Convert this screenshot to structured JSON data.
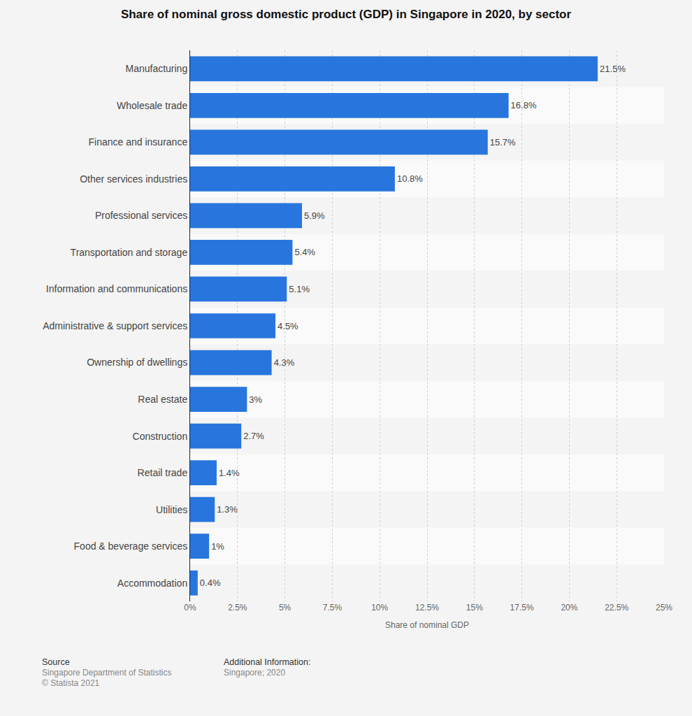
{
  "chart_data": {
    "type": "bar",
    "orientation": "horizontal",
    "title": "Share of nominal gross domestic product (GDP) in Singapore in 2020, by sector",
    "x_label": "Share of nominal GDP",
    "categories": [
      "Manufacturing",
      "Wholesale trade",
      "Finance and insurance",
      "Other services industries",
      "Professional services",
      "Transportation and storage",
      "Information and communications",
      "Administrative & support services",
      "Ownership of dwellings",
      "Real estate",
      "Construction",
      "Retail trade",
      "Utilities",
      "Food & beverage services",
      "Accommodation"
    ],
    "values": [
      21.5,
      16.8,
      15.7,
      10.8,
      5.9,
      5.4,
      5.1,
      4.5,
      4.3,
      3,
      2.7,
      1.4,
      1.3,
      1,
      0.4
    ],
    "value_labels": [
      "21.5%",
      "16.8%",
      "15.7%",
      "10.8%",
      "5.9%",
      "5.4%",
      "5.1%",
      "4.5%",
      "4.3%",
      "3%",
      "2.7%",
      "1.4%",
      "1.3%",
      "1%",
      "0.4%"
    ],
    "data_labels": true,
    "color": "#2876dd",
    "xlim": [
      0,
      25
    ],
    "xticks": [
      {
        "value": 0,
        "label": "0%"
      },
      {
        "value": 2.5,
        "label": "2.5%"
      },
      {
        "value": 5,
        "label": "5%"
      },
      {
        "value": 7.5,
        "label": "7.5%"
      },
      {
        "value": 10,
        "label": "10%"
      },
      {
        "value": 12.5,
        "label": "12.5%"
      },
      {
        "value": 15,
        "label": "15%"
      },
      {
        "value": 17.5,
        "label": "17.5%"
      },
      {
        "value": 20,
        "label": "20%"
      },
      {
        "value": 22.5,
        "label": "22.5%"
      },
      {
        "value": 25,
        "label": "25%"
      }
    ],
    "grid": true,
    "source": {
      "heading": "Source",
      "lines": [
        "Singapore Department of Statistics",
        "© Statista 2021"
      ]
    },
    "additional_information": {
      "heading": "Additional Information:",
      "lines": [
        "Singapore; 2020"
      ]
    }
  }
}
